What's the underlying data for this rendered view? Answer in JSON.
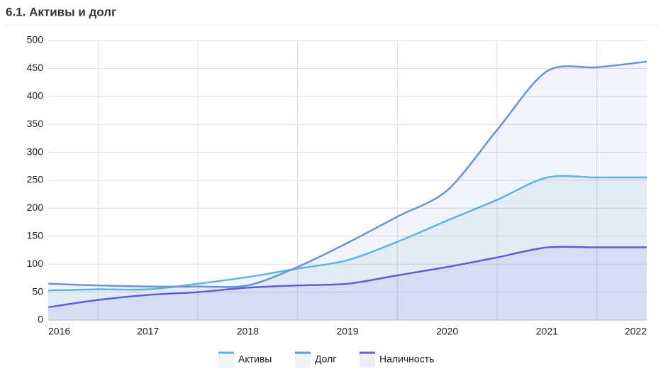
{
  "chart_data": {
    "type": "line",
    "title": "6.1. Активы и долг",
    "categories": [
      "2016",
      null,
      "2017",
      null,
      "2018",
      null,
      "2019",
      null,
      "2020",
      null,
      "2021",
      null,
      "2022"
    ],
    "series": [
      {
        "name": "Активы",
        "color": "#62b2dc",
        "values": [
          53,
          55,
          55,
          65,
          77,
          92,
          107,
          140,
          178,
          215,
          255,
          255,
          255
        ]
      },
      {
        "name": "Долг",
        "color": "#6c93d9",
        "values": [
          65,
          62,
          60,
          60,
          62,
          95,
          138,
          185,
          232,
          340,
          445,
          452,
          462
        ]
      },
      {
        "name": "Наличность",
        "color": "#5f5fd2",
        "values": [
          23,
          36,
          45,
          50,
          58,
          62,
          65,
          80,
          95,
          112,
          130,
          130,
          130
        ]
      }
    ],
    "ylim": [
      0,
      500
    ],
    "yticks": [
      0,
      50,
      100,
      150,
      200,
      250,
      300,
      350,
      400,
      450,
      500
    ],
    "grid": true
  }
}
